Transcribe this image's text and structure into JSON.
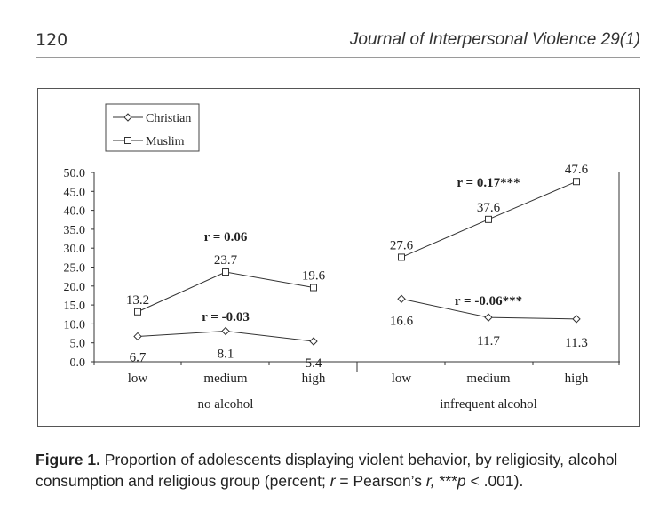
{
  "header": {
    "page_number": "120",
    "journal": "Journal of Interpersonal Violence 29(1)"
  },
  "chart_data": {
    "type": "line",
    "y_ticks": [
      "0.0",
      "5.0",
      "10.0",
      "15.0",
      "20.0",
      "25.0",
      "30.0",
      "35.0",
      "40.0",
      "45.0",
      "50.0"
    ],
    "ylim": [
      0,
      50
    ],
    "groups": [
      {
        "name": "no alcohol",
        "categories": [
          "low",
          "medium",
          "high"
        ],
        "series": [
          {
            "name": "Christian",
            "values": [
              6.7,
              8.1,
              5.4
            ],
            "labels": [
              "6.7",
              "8.1",
              "5.4"
            ],
            "r_label": "r = -0.03"
          },
          {
            "name": "Muslim",
            "values": [
              13.2,
              23.7,
              19.6
            ],
            "labels": [
              "13.2",
              "23.7",
              "19.6"
            ],
            "r_label": "r = 0.06"
          }
        ]
      },
      {
        "name": "infrequent alcohol",
        "categories": [
          "low",
          "medium",
          "high"
        ],
        "series": [
          {
            "name": "Christian",
            "values": [
              16.6,
              11.7,
              11.3
            ],
            "labels": [
              "16.6",
              "11.7",
              "11.3"
            ],
            "r_label": "r = -0.06***"
          },
          {
            "name": "Muslim",
            "values": [
              27.6,
              37.6,
              47.6
            ],
            "labels": [
              "27.6",
              "37.6",
              "47.6"
            ],
            "r_label": "r = 0.17***"
          }
        ]
      }
    ],
    "legend": [
      {
        "name": "Christian",
        "marker": "diamond"
      },
      {
        "name": "Muslim",
        "marker": "square"
      }
    ],
    "legend_position": "top-left"
  },
  "caption": {
    "label": "Figure 1.",
    "part1": " Proportion of adolescents displaying violent behavior, by religiosity, alcohol consumption and religious group (percent; ",
    "r": "r",
    "part2": " = Pearson’s ",
    "r2": "r,",
    "part3": " ***",
    "p": "p",
    "part4": " < .001)."
  }
}
